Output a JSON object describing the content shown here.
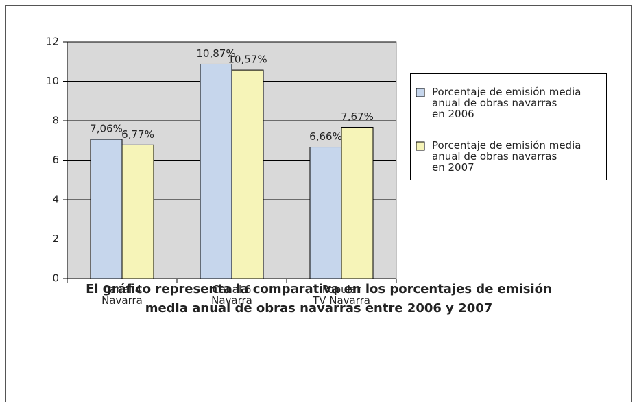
{
  "chart_data": {
    "type": "bar",
    "title": "El gráfico representa la comparativa en los porcentajes de emisión\nmedia anual de obras navarras entre 2006 y 2007",
    "categories": [
      "Canal 4\nNavarra",
      "Canal 6\nNavarra",
      "Popular\nTV Navarra"
    ],
    "series": [
      {
        "name": "Porcentaje de emisión media\nanual de obras navarras\nen 2006",
        "color": "#c6d6ec",
        "values": [
          7.06,
          10.87,
          6.66
        ],
        "value_labels": [
          "7,06%",
          "10,87%",
          "6,66%"
        ]
      },
      {
        "name": "Porcentaje de emisión media\nanual de obras navarras\nen 2007",
        "color": "#f6f4b8",
        "values": [
          6.77,
          10.57,
          7.67
        ],
        "value_labels": [
          "6,77%",
          "10,57%",
          "7,67%"
        ]
      }
    ],
    "ylim": [
      0,
      12
    ],
    "yticks": [
      0,
      2,
      4,
      6,
      8,
      10,
      12
    ],
    "grid": true,
    "legend": "right"
  }
}
